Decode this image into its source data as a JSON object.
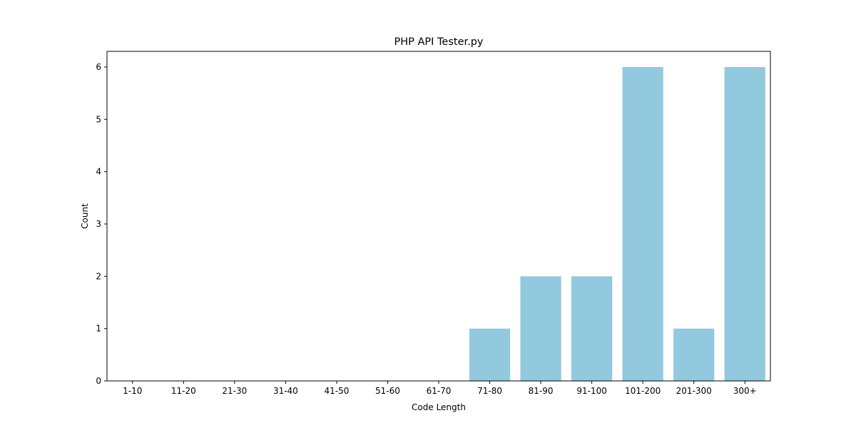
{
  "chart_data": {
    "type": "bar",
    "title": "PHP API Tester.py",
    "xlabel": "Code Length",
    "ylabel": "Count",
    "categories": [
      "1-10",
      "11-20",
      "21-30",
      "31-40",
      "41-50",
      "51-60",
      "61-70",
      "71-80",
      "81-90",
      "91-100",
      "101-200",
      "201-300",
      "300+"
    ],
    "values": [
      0,
      0,
      0,
      0,
      0,
      0,
      0,
      1,
      2,
      2,
      6,
      1,
      6
    ],
    "ylim": [
      0,
      6.3
    ],
    "yticks": [
      "0",
      "1",
      "2",
      "3",
      "4",
      "5",
      "6"
    ],
    "grid": false,
    "legend": "none",
    "bar_color": "#92c9de"
  }
}
